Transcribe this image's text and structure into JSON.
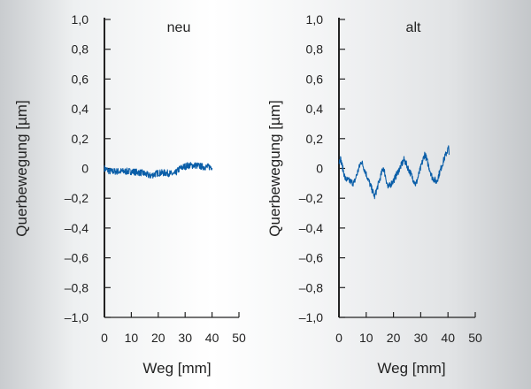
{
  "chart_data": [
    {
      "type": "line",
      "title": "neu",
      "xlabel": "Weg [mm]",
      "ylabel": "Querbewegung [µm]",
      "xlim": [
        0,
        50
      ],
      "ylim": [
        -1.0,
        1.0
      ],
      "xticks": [
        "0",
        "10",
        "20",
        "30",
        "40",
        "50"
      ],
      "yticks": [
        "1,0",
        "0,8",
        "0,6",
        "0,4",
        "0,2",
        "0",
        "-0,2",
        "-0,4",
        "-0,6",
        "-0,8",
        "-1,0"
      ],
      "grid": false,
      "color": "#0a5ea8",
      "x": [
        0,
        2,
        5,
        10,
        14,
        17,
        20,
        23,
        26,
        28,
        31,
        34,
        37,
        40
      ],
      "y": [
        0.0,
        -0.02,
        -0.02,
        -0.02,
        -0.03,
        -0.05,
        -0.03,
        -0.03,
        -0.04,
        0.0,
        0.02,
        0.02,
        0.01,
        0.01
      ]
    },
    {
      "type": "line",
      "title": "alt",
      "xlabel": "Weg [mm]",
      "ylabel": "Querbewegung [µm]",
      "xlim": [
        0,
        50
      ],
      "ylim": [
        -1.0,
        1.0
      ],
      "xticks": [
        "0",
        "10",
        "20",
        "30",
        "40",
        "50"
      ],
      "yticks": [
        "1,0",
        "0,8",
        "0,6",
        "0,4",
        "0,2",
        "0",
        "-0,2",
        "-0,4",
        "-0,6",
        "-0,8",
        "-1,0"
      ],
      "grid": false,
      "color": "#0a5ea8",
      "x": [
        0,
        0.5,
        2.3,
        5.5,
        8.2,
        13.1,
        16.3,
        18,
        20.1,
        23.9,
        28.2,
        31.5,
        34.2,
        35.8,
        38.5,
        40.2,
        40.4
      ],
      "y": [
        0.04,
        0.07,
        -0.07,
        -0.1,
        0.05,
        -0.19,
        0.01,
        -0.13,
        -0.08,
        0.06,
        -0.11,
        0.1,
        -0.06,
        -0.09,
        0.06,
        0.14,
        0.09
      ]
    }
  ]
}
